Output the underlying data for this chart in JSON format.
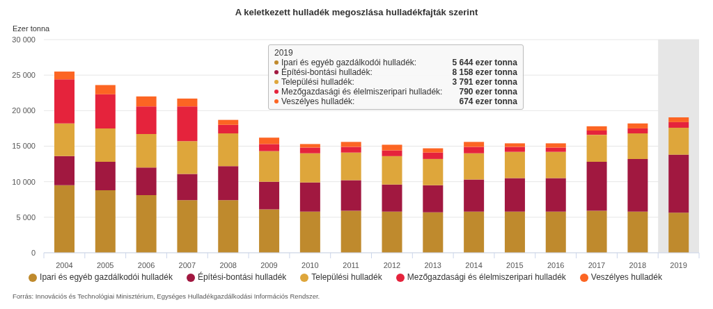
{
  "chart_data": {
    "type": "bar",
    "title": "A keletkezett hulladék megoszlása hulladékfajták szerint",
    "ylabel": "Ezer tonna",
    "x": [
      2004,
      2005,
      2006,
      2007,
      2008,
      2009,
      2010,
      2011,
      2012,
      2013,
      2014,
      2015,
      2016,
      2017,
      2018,
      2019
    ],
    "xlim": [
      2003.5,
      2019.5
    ],
    "xticks": [
      {
        "value": 2003.5,
        "label": null
      },
      2004,
      {
        "value": 2004.5,
        "label": null
      },
      2005,
      {
        "value": 2005.5,
        "label": null
      },
      2006,
      {
        "value": 2006.5,
        "label": null
      },
      2007,
      {
        "value": 2007.5,
        "label": null
      },
      2008,
      {
        "value": 2008.5,
        "label": null
      },
      2009,
      {
        "value": 2009.5,
        "label": null
      },
      2010,
      {
        "value": 2010.5,
        "label": null
      },
      2011,
      {
        "value": 2011.5,
        "label": null
      },
      2012,
      {
        "value": 2012.5,
        "label": null
      },
      2013,
      {
        "value": 2013.5,
        "label": null
      },
      2014,
      {
        "value": 2014.5,
        "label": null
      },
      2015,
      {
        "value": 2015.5,
        "label": null
      },
      2016,
      {
        "value": 2016.5,
        "label": null
      },
      2017,
      {
        "value": 2017.5,
        "label": null
      },
      2018,
      {
        "value": 2018.5,
        "label": null
      },
      2019,
      {
        "value": 2019.5,
        "label": null
      }
    ],
    "ylim": [
      0,
      30000
    ],
    "yticks": [
      0,
      {
        "value": 5000,
        "label": "5 000"
      },
      {
        "value": 10000,
        "label": "10 000"
      },
      {
        "value": 15000,
        "label": "15 000"
      },
      {
        "value": 20000,
        "label": "20 000"
      },
      {
        "value": 25000,
        "label": "25 000"
      },
      {
        "value": 30000,
        "label": "30 000"
      }
    ],
    "stacked": true,
    "grid": "y",
    "legend": "bottom",
    "bands": [
      {
        "axis": "x",
        "from": 2018.5,
        "to": 2019.5,
        "color": "#e6e6e6"
      }
    ],
    "series": [
      {
        "name": "Ipari és egyéb gazdálkodói hulladék",
        "color": "#bf8a2d",
        "values": [
          9500,
          8800,
          8100,
          7400,
          7400,
          6100,
          5800,
          5900,
          5800,
          5700,
          5800,
          5800,
          5800,
          5900,
          5800,
          5644
        ]
      },
      {
        "name": "Építési-bontási hulladék",
        "color": "#a11840",
        "values": [
          4100,
          4000,
          3900,
          3700,
          4800,
          3900,
          4100,
          4300,
          3800,
          3800,
          4500,
          4700,
          4700,
          6900,
          7400,
          8158
        ]
      },
      {
        "name": "Települési hulladék",
        "color": "#dea63b",
        "values": [
          4600,
          4700,
          4700,
          4600,
          4600,
          4300,
          4100,
          3900,
          4000,
          3700,
          3700,
          3700,
          3700,
          3800,
          3600,
          3791
        ]
      },
      {
        "name": "Mezőgazdasági és élelmiszeripari hulladék",
        "color": "#e5233c",
        "values": [
          6200,
          4800,
          3900,
          4900,
          1200,
          1000,
          800,
          800,
          800,
          900,
          900,
          700,
          600,
          600,
          700,
          790
        ]
      },
      {
        "name": "Veszélyes hulladék",
        "color": "#fc6523",
        "values": [
          1100,
          1300,
          1400,
          1100,
          700,
          900,
          500,
          700,
          800,
          600,
          700,
          500,
          600,
          600,
          700,
          674
        ]
      }
    ],
    "annotations": [
      "2019",
      "Ipari és egyéb gazdálkodói hulladék:",
      "5 644 ezer tonna",
      "Építési-bontási hulladék:",
      "8 158 ezer tonna",
      "Települési hulladék:",
      "3 791 ezer tonna",
      "Mezőgazdasági és élelmiszeripari hulladék:",
      "790 ezer tonna",
      "Veszélyes hulladék:",
      "674 ezer tonna",
      "Forrás: Innovációs és Technológiai Minisztérium, Egységes Hulladékgazdálkodási Információs Rendszer."
    ]
  }
}
